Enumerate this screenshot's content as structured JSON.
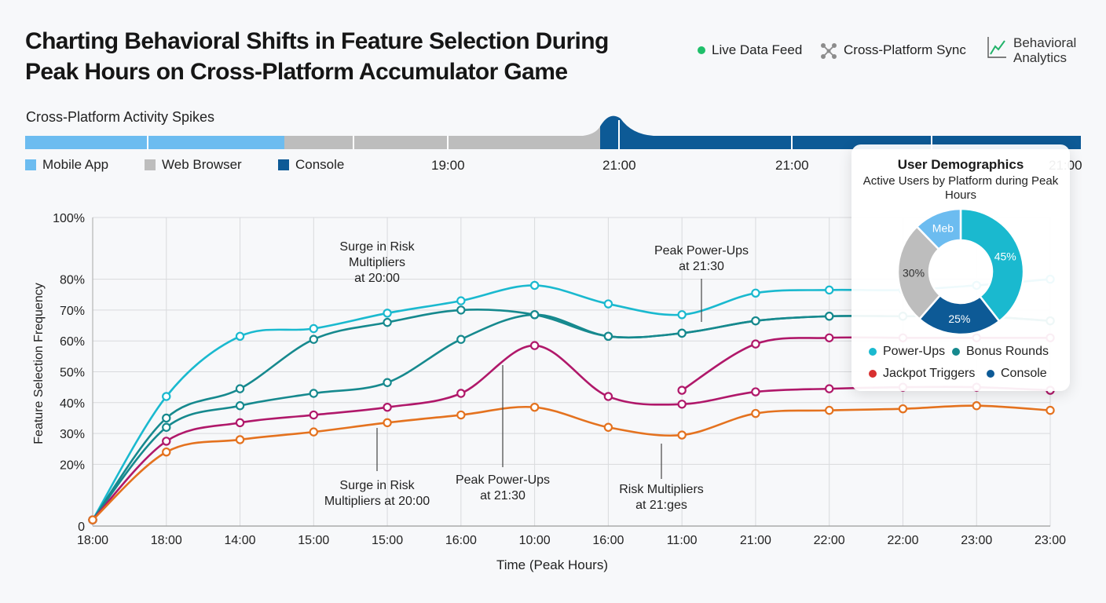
{
  "title": {
    "line1": "Charting Behavioral Shifts in Feature Selection During",
    "line2": "Peak Hours on Cross-Platform Accumulator Game"
  },
  "badges": {
    "live": "Live Data Feed",
    "sync": "Cross-Platform Sync",
    "analytics_line1": "Behavioral",
    "analytics_line2": "Analytics"
  },
  "activity": {
    "title": "Cross-Platform Activity Spikes",
    "legend": [
      "Mobile App",
      "Web Browser",
      "Console"
    ],
    "time_labels": [
      "19:00",
      "21:00",
      "21:00",
      "21:00"
    ]
  },
  "colors": {
    "mobile": "#6cbcf0",
    "web": "#bdbdbd",
    "console": "#0d5a96",
    "powerups": "#1ab9cf",
    "bonus": "#16898e",
    "jackpot": "#b0186a",
    "orange": "#e4721f",
    "legend_red": "#d83030"
  },
  "chart_data": [
    {
      "type": "line",
      "ylabel": "Feature Selection Frequency",
      "xlabel": "Time (Peak Hours)",
      "categories": [
        "18:00",
        "18:00",
        "14:00",
        "15:00",
        "15:00",
        "16:00",
        "10:00",
        "16:00",
        "11:00",
        "21:00",
        "22:00",
        "22:00",
        "23:00",
        "23:00"
      ],
      "yticks": [
        "0",
        "20%",
        "30%",
        "40%",
        "50%",
        "60%",
        "70%",
        "80%",
        "100%"
      ],
      "ylim": [
        0,
        100
      ],
      "series": [
        {
          "values": [
            2,
            42,
            61.5,
            64,
            69,
            73,
            78,
            72,
            68.5,
            75.5,
            76.5,
            76.5,
            78,
            80
          ]
        },
        {
          "values": [
            2,
            35,
            44.5,
            60.5,
            66,
            70,
            68.5,
            61.5,
            62.5,
            66.5,
            68,
            68,
            68,
            66.5
          ]
        },
        {
          "values": [
            2,
            32,
            39,
            43,
            46.5,
            60.5,
            68.5,
            61.5,
            62.5,
            66.5,
            68,
            68,
            68,
            66.5
          ]
        },
        {
          "values": [
            2,
            27.5,
            33.5,
            36,
            38.5,
            43,
            58.5,
            42,
            39.5,
            43.5,
            44.5,
            45,
            45,
            44
          ]
        },
        {
          "values": [
            2,
            24,
            28,
            30.5,
            33.5,
            36,
            38.5,
            32,
            29.5,
            36.5,
            37.5,
            38,
            39,
            37.5
          ]
        },
        {
          "values": [
            null,
            null,
            null,
            null,
            null,
            null,
            null,
            null,
            44,
            59,
            61,
            61,
            61,
            61
          ]
        }
      ],
      "annotations": [
        "Surge in Risk Multipliers at 20:00",
        "Peak Power-Ups at 21:30",
        "Surge in Risk Multipliers at 20:00",
        "Peak Power-Ups at 21:30",
        "Risk Multipliers at 21:ges"
      ]
    },
    {
      "type": "pie",
      "title": "User Demographics",
      "subtitle": "Active Users by Platform during Peak Hours",
      "slices": [
        {
          "label": "45%",
          "value": 45
        },
        {
          "label": "25%",
          "value": 25
        },
        {
          "label": "30%",
          "value": 30
        },
        {
          "label": "Meb",
          "value": 14
        }
      ],
      "legend": [
        "Power-Ups",
        "Bonus Rounds",
        "Jackpot Triggers",
        "Console"
      ]
    }
  ]
}
